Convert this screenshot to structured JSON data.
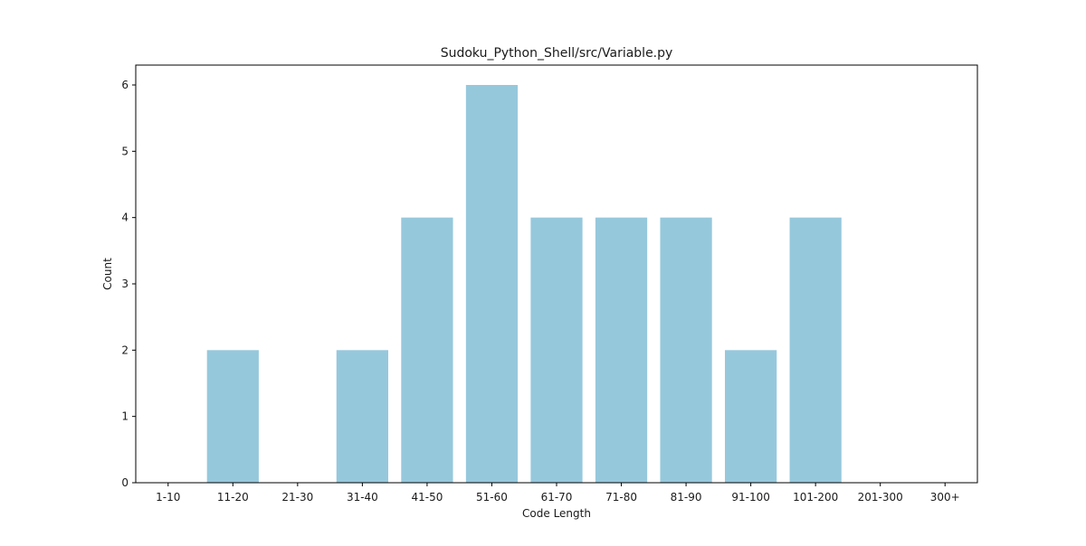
{
  "chart_data": {
    "type": "bar",
    "title": "Sudoku_Python_Shell/src/Variable.py",
    "xlabel": "Code Length",
    "ylabel": "Count",
    "categories": [
      "1-10",
      "11-20",
      "21-30",
      "31-40",
      "41-50",
      "51-60",
      "61-70",
      "71-80",
      "81-90",
      "91-100",
      "101-200",
      "201-300",
      "300+"
    ],
    "values": [
      0,
      2,
      0,
      2,
      4,
      6,
      4,
      4,
      4,
      2,
      4,
      0,
      0
    ],
    "ylim": [
      0,
      6.3
    ],
    "yticks": [
      0,
      1,
      2,
      3,
      4,
      5,
      6
    ],
    "grid": false,
    "bar_color": "#96c8dc"
  }
}
